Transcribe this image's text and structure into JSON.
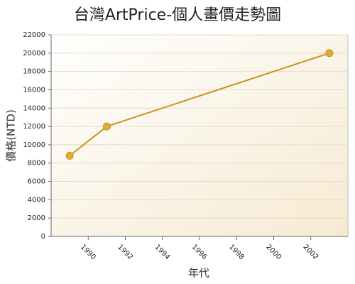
{
  "chart_data": {
    "type": "line",
    "title": "台灣ArtPrice-個人畫價走勢圖",
    "x_label": "年代",
    "y_label": "價格(NTD)",
    "x": [
      1989,
      1991,
      2003
    ],
    "series": [
      {
        "name": "價格",
        "color": "#c8921e",
        "values": [
          8800,
          12000,
          20000
        ]
      }
    ],
    "xlim": [
      1988,
      2004
    ],
    "xticks": [
      1990,
      1992,
      1994,
      1996,
      1998,
      2000,
      2002
    ],
    "ylim": [
      0,
      22000
    ],
    "yticks": [
      0,
      2000,
      4000,
      6000,
      8000,
      10000,
      12000,
      14000,
      16000,
      18000,
      20000,
      22000
    ],
    "grid": true
  }
}
